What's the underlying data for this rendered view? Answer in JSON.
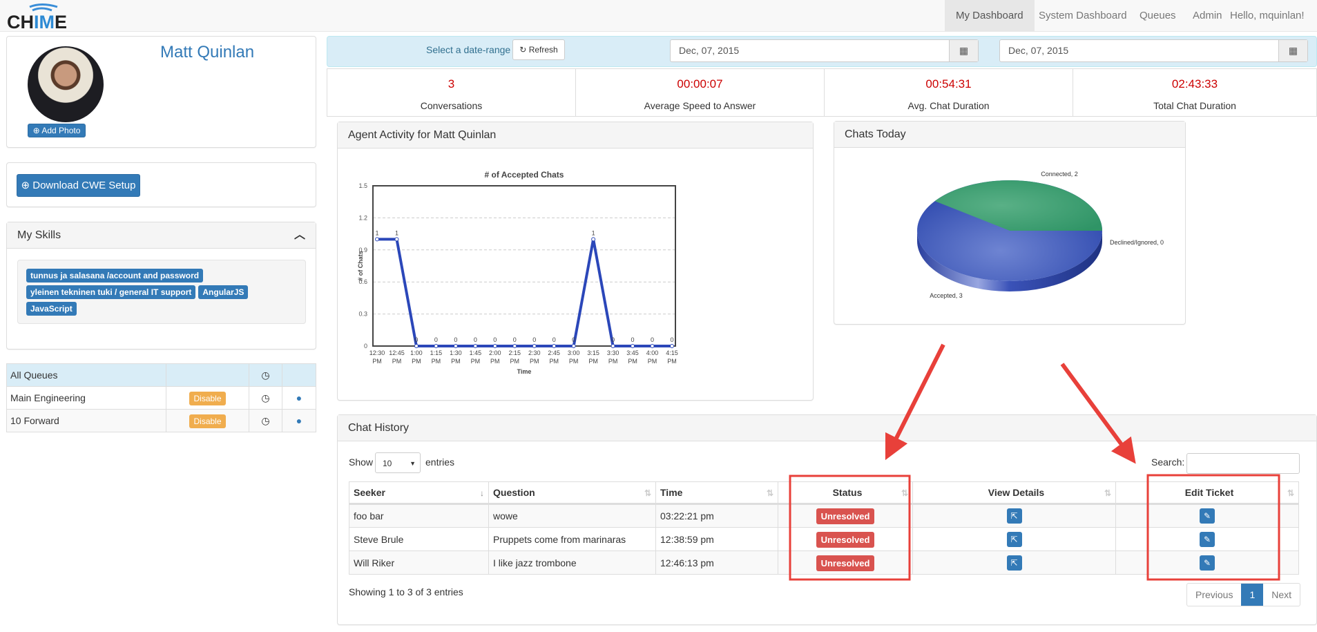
{
  "brand": {
    "logo_text": "CHIME"
  },
  "nav": {
    "items": [
      {
        "label": "My Dashboard",
        "active": true
      },
      {
        "label": "System Dashboard"
      },
      {
        "label": "Queues"
      },
      {
        "label": "Admin"
      },
      {
        "label": "Hello, mquinlan!"
      }
    ]
  },
  "profile": {
    "name": "Matt Quinlan",
    "add_photo": "Add Photo"
  },
  "download": {
    "label": "Download CWE Setup"
  },
  "skills": {
    "title": "My Skills",
    "items": [
      "tunnus ja salasana /account and password",
      "yleinen tekninen tuki / general IT support",
      "AngularJS",
      "JavaScript"
    ]
  },
  "queues": {
    "header": "All Queues",
    "rows": [
      {
        "name": "Main Engineering",
        "action": "Disable"
      },
      {
        "name": "10 Forward",
        "action": "Disable"
      }
    ]
  },
  "daterange": {
    "label": "Select a date-range",
    "refresh": "Refresh",
    "start": "Dec, 07, 2015",
    "end": "Dec, 07, 2015"
  },
  "stats": [
    {
      "value": "3",
      "label": "Conversations"
    },
    {
      "value": "00:00:07",
      "label": "Average Speed to Answer"
    },
    {
      "value": "00:54:31",
      "label": "Avg. Chat Duration"
    },
    {
      "value": "02:43:33",
      "label": "Total Chat Duration"
    }
  ],
  "colors": {
    "primary": "#337ab7",
    "stat_value": "#cc0000",
    "danger": "#d9534f",
    "warning": "#f0ad4e",
    "line": "#2b47b9",
    "pie_green": "#3aa06f",
    "pie_blue": "#4a62c4",
    "annotation": "#e8403a"
  },
  "activity": {
    "title": "Agent Activity for Matt Quinlan"
  },
  "chart_data": [
    {
      "type": "line",
      "title": "# of Accepted Chats",
      "xlabel": "Time",
      "ylabel": "# of Chats",
      "ylim": [
        0,
        1.5
      ],
      "yticks": [
        "0",
        "0.3",
        "0.6",
        "0.9",
        "1.2",
        "1.5"
      ],
      "grid": true,
      "categories": [
        [
          "12:30",
          "PM"
        ],
        [
          "12:45",
          "PM"
        ],
        [
          "1:00",
          "PM"
        ],
        [
          "1:15",
          "PM"
        ],
        [
          "1:30",
          "PM"
        ],
        [
          "1:45",
          "PM"
        ],
        [
          "2:00",
          "PM"
        ],
        [
          "2:15",
          "PM"
        ],
        [
          "2:30",
          "PM"
        ],
        [
          "2:45",
          "PM"
        ],
        [
          "3:00",
          "PM"
        ],
        [
          "3:15",
          "PM"
        ],
        [
          "3:30",
          "PM"
        ],
        [
          "3:45",
          "PM"
        ],
        [
          "4:00",
          "PM"
        ],
        [
          "4:15",
          "PM"
        ]
      ],
      "values": [
        1,
        1,
        0,
        0,
        0,
        0,
        0,
        0,
        0,
        0,
        0,
        1,
        0,
        0,
        0,
        0
      ]
    },
    {
      "type": "pie",
      "title": "Chats Today",
      "slices": [
        {
          "name": "Connected",
          "value": 2,
          "label": "Connected, 2"
        },
        {
          "name": "Declined/Ignored",
          "value": 0,
          "label": "Declined/Ignored, 0"
        },
        {
          "name": "Accepted",
          "value": 3,
          "label": "Accepted, 3"
        }
      ]
    }
  ],
  "history": {
    "title": "Chat History",
    "show": "Show",
    "entries": "entries",
    "page_size": "10",
    "search_label": "Search:",
    "search_value": "",
    "columns": [
      "Seeker",
      "Question",
      "Time",
      "Status",
      "View Details",
      "Edit Ticket"
    ],
    "rows": [
      {
        "seeker": "foo bar",
        "question": "wowe",
        "time": "03:22:21 pm",
        "status": "Unresolved"
      },
      {
        "seeker": "Steve Brule",
        "question": "Pruppets come from marinaras",
        "time": "12:38:59 pm",
        "status": "Unresolved"
      },
      {
        "seeker": "Will Riker",
        "question": "I like jazz trombone",
        "time": "12:46:13 pm",
        "status": "Unresolved"
      }
    ],
    "info": "Showing 1 to 3 of 3 entries",
    "prev": "Previous",
    "page": "1",
    "next": "Next"
  }
}
